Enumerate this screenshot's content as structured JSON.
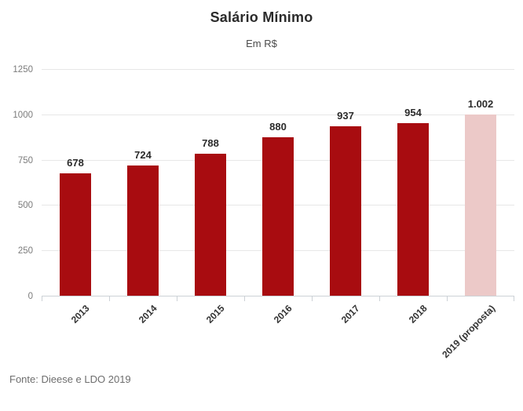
{
  "header": {
    "title": "Salário Mínimo",
    "subtitle": "Em R$"
  },
  "footer": {
    "source": "Fonte: Dieese e LDO 2019"
  },
  "chart_data": {
    "type": "bar",
    "title": "Salário Mínimo",
    "subtitle": "Em R$",
    "categories": [
      "2013",
      "2014",
      "2015",
      "2016",
      "2017",
      "2018",
      "2019 (proposta)"
    ],
    "values": [
      678,
      724,
      788,
      880,
      937,
      954,
      1002
    ],
    "value_labels": [
      "678",
      "724",
      "788",
      "880",
      "937",
      "954",
      "1.002"
    ],
    "highlighted_category": "2019 (proposta)",
    "xlabel": "",
    "ylabel": "",
    "ylim": [
      0,
      1250
    ],
    "yticks": [
      0,
      250,
      500,
      750,
      1000,
      1250
    ],
    "ytick_labels": [
      "0",
      "250",
      "500",
      "750",
      "1000",
      "1250"
    ],
    "grid": true,
    "legend": false,
    "colors": {
      "bar": "#a80c10",
      "bar_highlight": "#ecc9c8",
      "grid_line": "#e7e7e7",
      "axis_line": "#ccd1d6",
      "ytick_label": "#7b7b7b",
      "value_label": "#2b2b2b",
      "category_label": "#333333"
    }
  }
}
